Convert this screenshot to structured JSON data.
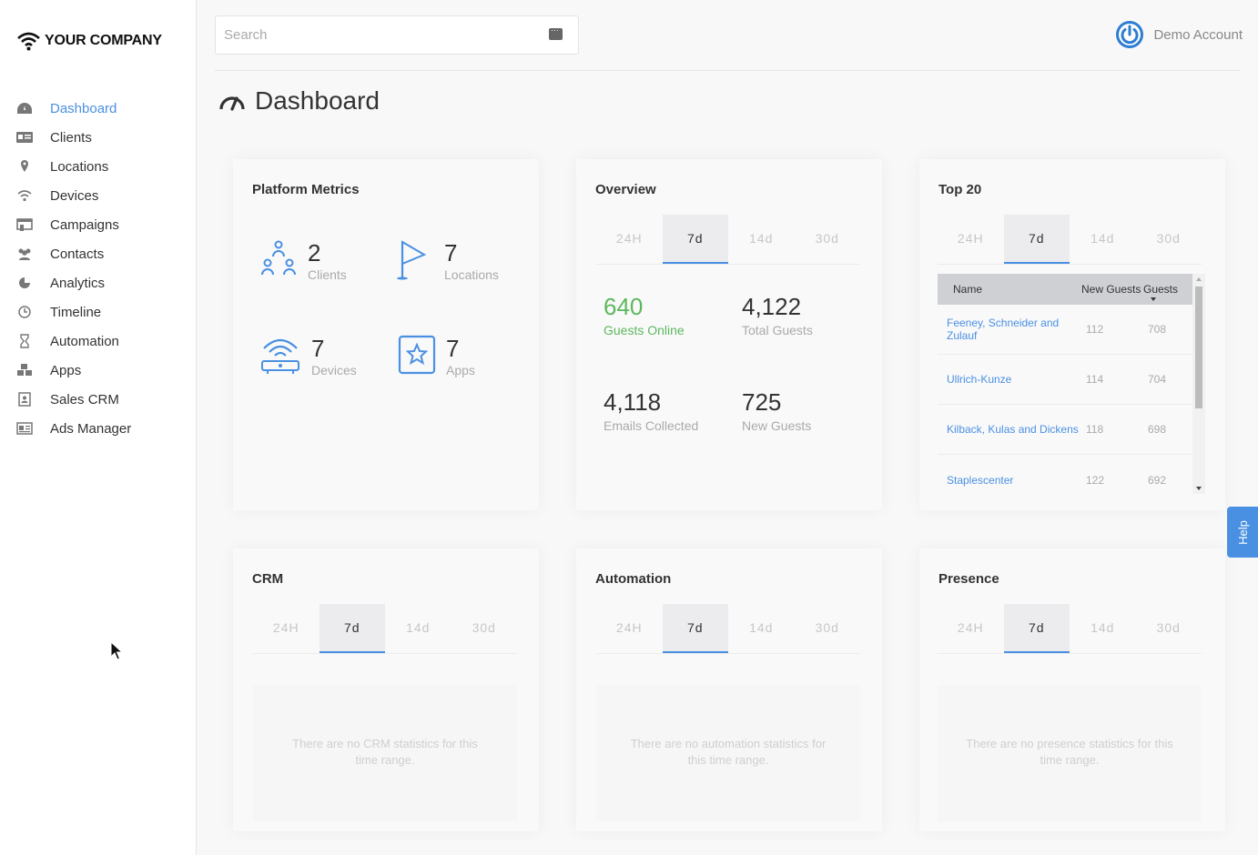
{
  "brand": {
    "name": "YOUR COMPANY"
  },
  "sidebar": {
    "items": [
      {
        "label": "Dashboard",
        "icon": "dashboard-icon",
        "active": true
      },
      {
        "label": "Clients",
        "icon": "id-card-icon"
      },
      {
        "label": "Locations",
        "icon": "map-pin-icon"
      },
      {
        "label": "Devices",
        "icon": "wifi-icon"
      },
      {
        "label": "Campaigns",
        "icon": "campaign-icon"
      },
      {
        "label": "Contacts",
        "icon": "users-icon"
      },
      {
        "label": "Analytics",
        "icon": "pie-chart-icon"
      },
      {
        "label": "Timeline",
        "icon": "clock-icon"
      },
      {
        "label": "Automation",
        "icon": "hourglass-icon"
      },
      {
        "label": "Apps",
        "icon": "cubes-icon"
      },
      {
        "label": "Sales CRM",
        "icon": "contact-book-icon"
      },
      {
        "label": "Ads Manager",
        "icon": "newspaper-icon"
      }
    ]
  },
  "search": {
    "placeholder": "Search"
  },
  "account": {
    "name": "Demo Account"
  },
  "page": {
    "title": "Dashboard"
  },
  "tabs": [
    "24H",
    "7d",
    "14d",
    "30d"
  ],
  "platform_metrics": {
    "title": "Platform Metrics",
    "items": [
      {
        "value": "2",
        "label": "Clients"
      },
      {
        "value": "7",
        "label": "Locations"
      },
      {
        "value": "7",
        "label": "Devices"
      },
      {
        "value": "7",
        "label": "Apps"
      }
    ]
  },
  "overview": {
    "title": "Overview",
    "metrics": [
      {
        "value": "640",
        "label": "Guests Online"
      },
      {
        "value": "4,122",
        "label": "Total Guests"
      },
      {
        "value": "4,118",
        "label": "Emails Collected"
      },
      {
        "value": "725",
        "label": "New Guests"
      }
    ],
    "highlight_color": "#5cb85c"
  },
  "top20": {
    "title": "Top 20",
    "columns": [
      "Name",
      "New Guests",
      "Guests"
    ],
    "rows": [
      {
        "name": "Feeney, Schneider and Zulauf",
        "new": "112",
        "guests": "708"
      },
      {
        "name": "Ullrich-Kunze",
        "new": "114",
        "guests": "704"
      },
      {
        "name": "Kilback, Kulas and Dickens",
        "new": "118",
        "guests": "698"
      },
      {
        "name": "Staplescenter",
        "new": "122",
        "guests": "692"
      }
    ]
  },
  "crm": {
    "title": "CRM",
    "empty": "There are no CRM statistics for this time range."
  },
  "automation": {
    "title": "Automation",
    "empty": "There are no automation statistics for this time range."
  },
  "presence": {
    "title": "Presence",
    "empty": "There are no presence statistics for this time range."
  },
  "help": {
    "label": "Help"
  },
  "colors": {
    "accent": "#4a90e2",
    "success": "#5cb85c"
  }
}
